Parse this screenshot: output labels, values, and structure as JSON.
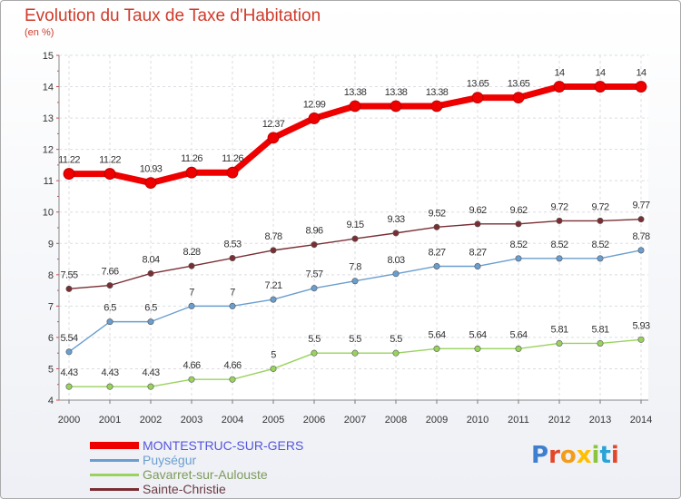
{
  "header": {
    "title": "Evolution du Taux de Taxe d'Habitation",
    "subtitle": "(en %)"
  },
  "logo": {
    "text": "Proxiti",
    "letter_colors": [
      "#3f7fd0",
      "#e2472a",
      "#f39c1b",
      "#ffbf00",
      "#8bc43f",
      "#2aa3d6",
      "#e2472a"
    ]
  },
  "chart_data": {
    "type": "line",
    "x": [
      "2000",
      "2001",
      "2002",
      "2003",
      "2004",
      "2005",
      "2006",
      "2007",
      "2008",
      "2009",
      "2010",
      "2011",
      "2012",
      "2013",
      "2014"
    ],
    "ylim": [
      4,
      15
    ],
    "yticks": [
      "4",
      "5",
      "6",
      "7",
      "8",
      "9",
      "10",
      "11",
      "12",
      "13",
      "14",
      "15"
    ],
    "grid": true,
    "legend_position": "bottom-left",
    "series": [
      {
        "name": "MONTESTRUC-SUR-GERS",
        "color": "#ee0000",
        "legend_text_color": "#5555dd",
        "values": [
          11.22,
          11.22,
          10.93,
          11.26,
          11.26,
          12.37,
          12.99,
          13.38,
          13.38,
          13.38,
          13.65,
          13.65,
          14,
          14,
          14
        ],
        "labels": [
          "11.22",
          "11.22",
          "10.93",
          "11.26",
          "11.26",
          "12.37",
          "12.99",
          "13.38",
          "13.38",
          "13.38",
          "13.65",
          "13.65",
          "14",
          "14",
          "14"
        ]
      },
      {
        "name": "Puységur",
        "color": "#6a9ecf",
        "legend_text_color": "#6a9ecf",
        "values": [
          5.54,
          6.5,
          6.5,
          7,
          7,
          7.21,
          7.57,
          7.8,
          8.03,
          8.27,
          8.27,
          8.52,
          8.52,
          8.52,
          8.78
        ],
        "labels": [
          "5.54",
          "6.5",
          "6.5",
          "7",
          "7",
          "7.21",
          "7.57",
          "7.8",
          "8.03",
          "8.27",
          "8.27",
          "8.52",
          "8.52",
          "8.52",
          "8.78"
        ]
      },
      {
        "name": "Gavarret-sur-Aulouste",
        "color": "#99d35e",
        "legend_text_color": "#7e9a5c",
        "values": [
          4.43,
          4.43,
          4.43,
          4.66,
          4.66,
          5,
          5.5,
          5.5,
          5.5,
          5.64,
          5.64,
          5.64,
          5.81,
          5.81,
          5.93
        ],
        "labels": [
          "4.43",
          "4.43",
          "4.43",
          "4.66",
          "4.66",
          "5",
          "5.5",
          "5.5",
          "5.5",
          "5.64",
          "5.64",
          "5.64",
          "5.81",
          "5.81",
          "5.93"
        ]
      },
      {
        "name": "Sainte-Christie",
        "color": "#7a2e33",
        "legend_text_color": "#6b3a40",
        "values": [
          7.55,
          7.66,
          8.04,
          8.28,
          8.53,
          8.78,
          8.96,
          9.15,
          9.33,
          9.52,
          9.62,
          9.62,
          9.72,
          9.72,
          9.77
        ],
        "labels": [
          "7.55",
          "7.66",
          "8.04",
          "8.28",
          "8.53",
          "8.78",
          "8.96",
          "9.15",
          "9.33",
          "9.52",
          "9.62",
          "9.62",
          "9.72",
          "9.72",
          "9.77"
        ]
      }
    ]
  }
}
